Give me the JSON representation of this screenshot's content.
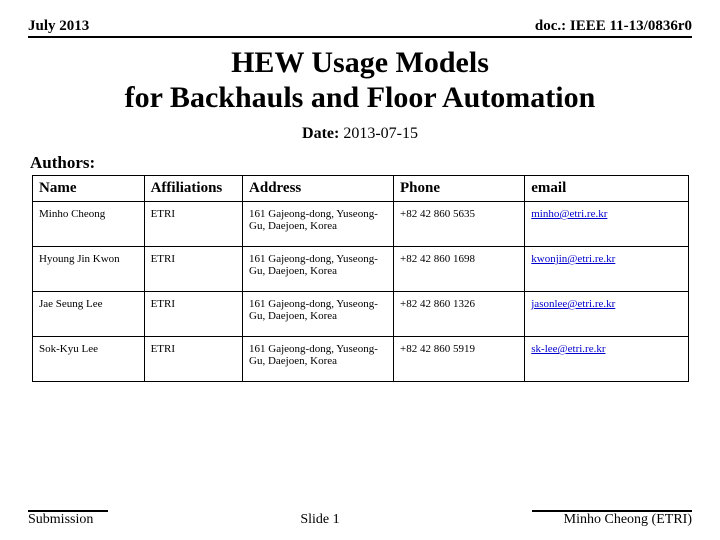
{
  "header": {
    "left": "July 2013",
    "right": "doc.: IEEE 11-13/0836r0"
  },
  "title": "HEW Usage Models\nfor Backhauls and Floor Automation",
  "date": {
    "label": "Date:",
    "value": "2013-07-15"
  },
  "authors_label": "Authors:",
  "table": {
    "columns": [
      "Name",
      "Affiliations",
      "Address",
      "Phone",
      "email"
    ],
    "rows": [
      {
        "name": "Minho Cheong",
        "aff": "ETRI",
        "addr": "161 Gajeong-dong, Yuseong-Gu, Daejoen, Korea",
        "phone": "+82 42 860 5635",
        "email": "minho@etri.re.kr"
      },
      {
        "name": "Hyoung Jin Kwon",
        "aff": "ETRI",
        "addr": "161 Gajeong-dong, Yuseong-Gu, Daejoen, Korea",
        "phone": "+82 42 860 1698",
        "email": "kwonjin@etri.re.kr"
      },
      {
        "name": "Jae Seung Lee",
        "aff": "ETRI",
        "addr": "161 Gajeong-dong, Yuseong-Gu, Daejoen, Korea",
        "phone": "+82 42 860 1326",
        "email": "jasonlee@etri.re.kr"
      },
      {
        "name": "Sok-Kyu Lee",
        "aff": "ETRI",
        "addr": "161 Gajeong-dong, Yuseong-Gu, Daejoen, Korea",
        "phone": "+82 42 860 5919",
        "email": "sk-lee@etri.re.kr"
      }
    ]
  },
  "footer": {
    "left": "Submission",
    "center": "Slide 1",
    "right": "Minho Cheong (ETRI)"
  }
}
